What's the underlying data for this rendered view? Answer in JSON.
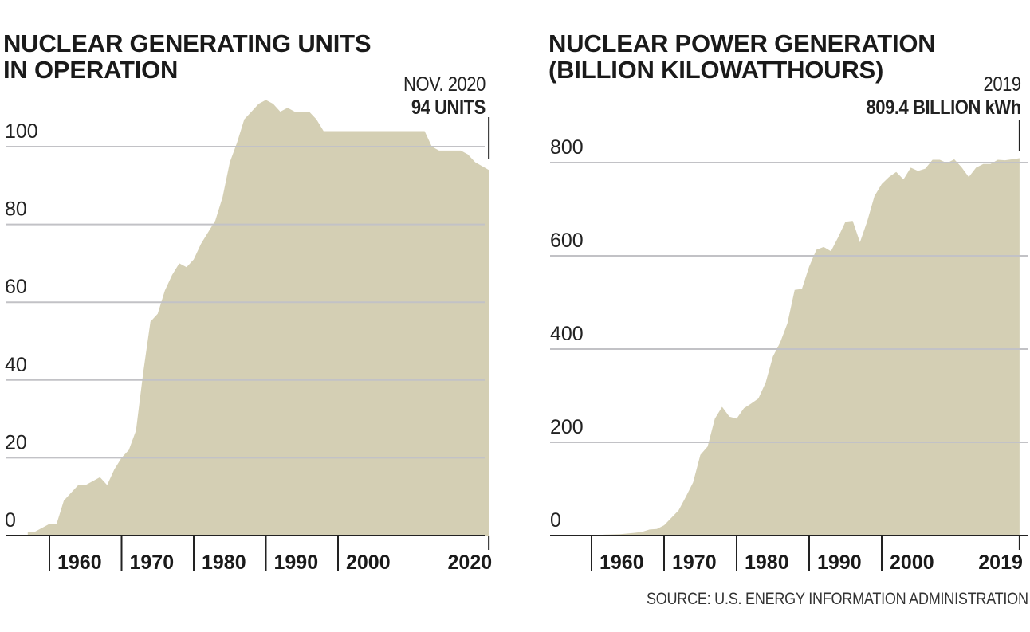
{
  "colors": {
    "fill": "#d4cfb4",
    "grid": "#c2c2c6",
    "axis": "#222222",
    "text": "#222222"
  },
  "source": "SOURCE: U.S. ENERGY INFORMATION ADMINISTRATION",
  "chart_data": [
    {
      "id": "units",
      "type": "area",
      "title_lines": [
        "NUCLEAR GENERATING UNITS",
        "IN OPERATION"
      ],
      "xlabel": "",
      "ylabel": "",
      "ylim": [
        0,
        100
      ],
      "xlim": [
        1956,
        2021.6
      ],
      "grid": true,
      "legend": "none",
      "yticks": [
        0,
        20,
        40,
        60,
        80,
        100
      ],
      "ytick_labels": [
        "0",
        "20",
        "40",
        "60",
        "80",
        "100"
      ],
      "xticks": [
        1960,
        1970,
        1980,
        1990,
        2000,
        2020.9
      ],
      "xtick_labels": [
        "1960",
        "1970",
        "1980",
        "1990",
        "2000",
        "2020"
      ],
      "annotation": {
        "when": "NOV. 2020",
        "value_label": "94 UNITS",
        "x": 2020.9
      },
      "series": [
        {
          "name": "Units in operation",
          "x": [
            1957,
            1958,
            1959,
            1960,
            1961,
            1962,
            1963,
            1964,
            1965,
            1966,
            1967,
            1968,
            1969,
            1970,
            1971,
            1972,
            1973,
            1974,
            1975,
            1976,
            1977,
            1978,
            1979,
            1980,
            1981,
            1982,
            1983,
            1984,
            1985,
            1986,
            1987,
            1988,
            1989,
            1990,
            1991,
            1992,
            1993,
            1994,
            1995,
            1996,
            1997,
            1998,
            1999,
            2000,
            2005,
            2010,
            2012,
            2013,
            2014,
            2015,
            2016,
            2017,
            2018,
            2019,
            2020.9
          ],
          "values": [
            1,
            1,
            2,
            3,
            3,
            9,
            11,
            13,
            13,
            14,
            15,
            13,
            17,
            20,
            22,
            27,
            42,
            55,
            57,
            63,
            67,
            70,
            69,
            71,
            75,
            78,
            81,
            87,
            96,
            101,
            107,
            109,
            111,
            112,
            111,
            109,
            110,
            109,
            109,
            109,
            107,
            104,
            104,
            104,
            104,
            104,
            104,
            100,
            99,
            99,
            99,
            99,
            98,
            96,
            94
          ]
        }
      ]
    },
    {
      "id": "generation",
      "type": "area",
      "title_lines": [
        "NUCLEAR POWER GENERATION",
        "(BILLION KILOWATTHOURS)"
      ],
      "xlabel": "",
      "ylabel": "Billion kilowatthours",
      "ylim": [
        0,
        800
      ],
      "xlim": [
        1955.5,
        2021
      ],
      "grid": true,
      "legend": "none",
      "yticks": [
        0,
        200,
        400,
        600,
        800
      ],
      "ytick_labels": [
        "0",
        "200",
        "400",
        "600",
        "800"
      ],
      "xticks": [
        1960,
        1970,
        1980,
        1990,
        2000,
        2019
      ],
      "xtick_labels": [
        "1960",
        "1970",
        "1980",
        "1990",
        "2000",
        "2019"
      ],
      "annotation": {
        "when": "2019",
        "value_label": "809.4 BILLION kWh",
        "x": 2019
      },
      "series": [
        {
          "name": "Nuclear generation",
          "x": [
            1957,
            1960,
            1962,
            1964,
            1966,
            1967,
            1968,
            1969,
            1970,
            1971,
            1972,
            1973,
            1974,
            1975,
            1976,
            1977,
            1978,
            1979,
            1980,
            1981,
            1982,
            1983,
            1984,
            1985,
            1986,
            1987,
            1988,
            1989,
            1990,
            1991,
            1992,
            1993,
            1994,
            1995,
            1996,
            1997,
            1998,
            1999,
            2000,
            2001,
            2002,
            2003,
            2004,
            2005,
            2006,
            2007,
            2008,
            2009,
            2010,
            2011,
            2012,
            2013,
            2014,
            2015,
            2016,
            2017,
            2018,
            2019
          ],
          "values": [
            0,
            0.5,
            2,
            3,
            6,
            8,
            13,
            14,
            22,
            38,
            54,
            83,
            114,
            173,
            191,
            251,
            276,
            255,
            251,
            273,
            283,
            294,
            328,
            384,
            414,
            455,
            527,
            529,
            577,
            613,
            619,
            610,
            640,
            673,
            675,
            629,
            674,
            728,
            754,
            769,
            780,
            764,
            789,
            782,
            787,
            806,
            806,
            799,
            807,
            790,
            769,
            789,
            797,
            797,
            806,
            805,
            807,
            809.4
          ]
        }
      ]
    }
  ]
}
